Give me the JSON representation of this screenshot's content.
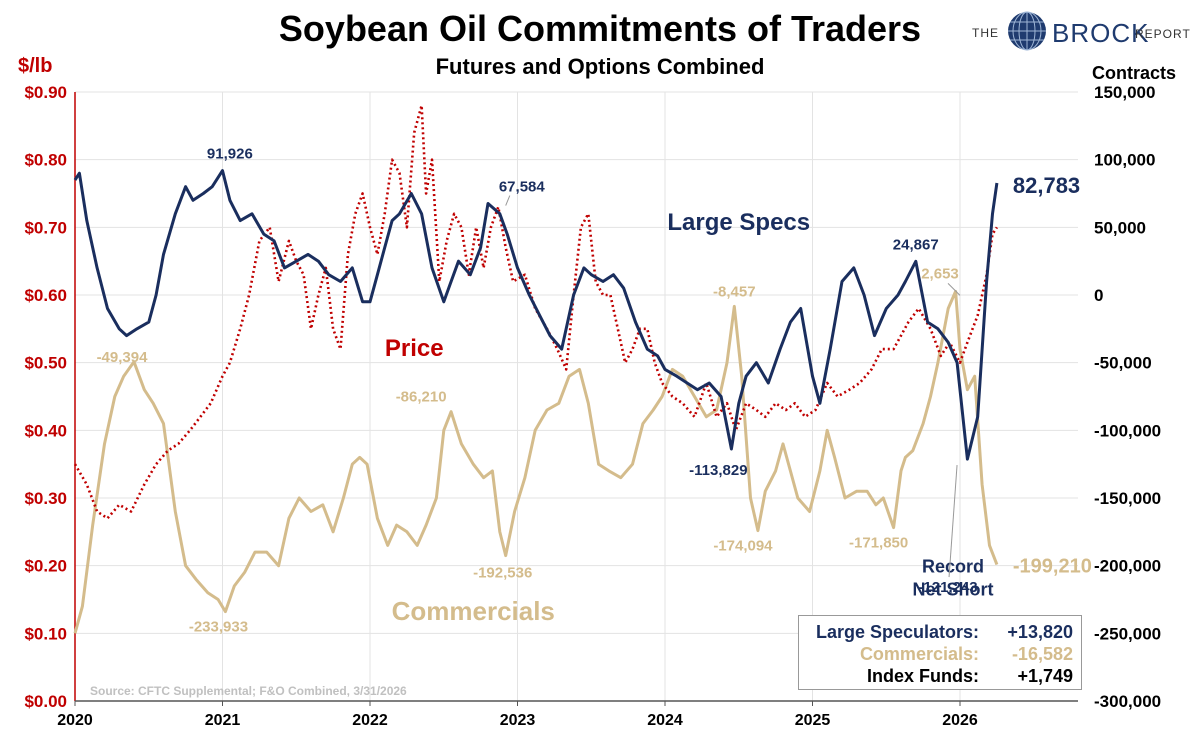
{
  "header": {
    "title": "Soybean Oil Commitments of Traders",
    "subtitle": "Futures and Options Combined"
  },
  "logo": {
    "the": "THE",
    "brock": "BROCK",
    "report": "REPORT"
  },
  "axes": {
    "left_unit": "$/lb",
    "right_unit": "Contracts",
    "left_ticks": [
      "$0.00",
      "$0.10",
      "$0.20",
      "$0.30",
      "$0.40",
      "$0.50",
      "$0.60",
      "$0.70",
      "$0.80",
      "$0.90"
    ],
    "right_ticks": [
      "-300,000",
      "-250,000",
      "-200,000",
      "-150,000",
      "-100,000",
      "-50,000",
      "0",
      "50,000",
      "100,000",
      "150,000"
    ],
    "x_ticks": [
      "2020",
      "2021",
      "2022",
      "2023",
      "2024",
      "2025",
      "2026"
    ]
  },
  "source": "Source: CFTC Supplemental; F&O Combined, 3/31/2026",
  "legend": {
    "rows": [
      {
        "label": "Large Speculators:",
        "value": "+13,820",
        "color": "#1a2e5e"
      },
      {
        "label": "Commercials:",
        "value": "-16,582",
        "color": "#d4bc8c"
      },
      {
        "label": "Index Funds:",
        "value": "+1,749",
        "color": "#000000"
      }
    ]
  },
  "colors": {
    "large_specs": "#1a2e5e",
    "commercials": "#d4bc8c",
    "price": "#c00000",
    "grid": "#e3e3e3"
  },
  "chart_data": {
    "type": "line",
    "x_range": [
      2020.0,
      2026.8
    ],
    "left_ylim": [
      0,
      0.9
    ],
    "right_ylim": [
      -300000,
      150000
    ],
    "grid": true,
    "series": [
      {
        "name": "Large Specs",
        "axis": "right",
        "style": "solid",
        "x": [
          2020.0,
          2020.03,
          2020.08,
          2020.15,
          2020.22,
          2020.3,
          2020.35,
          2020.42,
          2020.5,
          2020.55,
          2020.6,
          2020.68,
          2020.75,
          2020.8,
          2020.87,
          2020.93,
          2021.0,
          2021.05,
          2021.12,
          2021.2,
          2021.28,
          2021.35,
          2021.42,
          2021.5,
          2021.58,
          2021.65,
          2021.72,
          2021.8,
          2021.88,
          2021.95,
          2022.0,
          2022.05,
          2022.1,
          2022.15,
          2022.2,
          2022.28,
          2022.35,
          2022.42,
          2022.5,
          2022.55,
          2022.6,
          2022.68,
          2022.75,
          2022.8,
          2022.88,
          2022.93,
          2023.0,
          2023.08,
          2023.15,
          2023.22,
          2023.3,
          2023.38,
          2023.45,
          2023.5,
          2023.58,
          2023.65,
          2023.72,
          2023.8,
          2023.88,
          2023.95,
          2024.0,
          2024.08,
          2024.15,
          2024.22,
          2024.3,
          2024.38,
          2024.45,
          2024.5,
          2024.55,
          2024.62,
          2024.7,
          2024.78,
          2024.85,
          2024.92,
          2025.0,
          2025.05,
          2025.12,
          2025.2,
          2025.28,
          2025.35,
          2025.42,
          2025.5,
          2025.58,
          2025.63,
          2025.7,
          2025.78,
          2025.85,
          2025.92,
          2025.98,
          2026.05,
          2026.12,
          2026.18,
          2026.22,
          2026.25
        ],
        "values": [
          85000,
          90000,
          55000,
          20000,
          -10000,
          -25000,
          -30000,
          -25000,
          -20000,
          0,
          30000,
          60000,
          80000,
          70000,
          75000,
          80000,
          91926,
          70000,
          55000,
          60000,
          45000,
          40000,
          20000,
          25000,
          30000,
          25000,
          15000,
          10000,
          20000,
          -5000,
          -5000,
          15000,
          35000,
          55000,
          60000,
          75000,
          60000,
          20000,
          -5000,
          10000,
          25000,
          15000,
          35000,
          67584,
          60000,
          45000,
          20000,
          0,
          -15000,
          -30000,
          -40000,
          0,
          20000,
          15000,
          10000,
          15000,
          5000,
          -20000,
          -40000,
          -45000,
          -55000,
          -60000,
          -65000,
          -70000,
          -65000,
          -75000,
          -113829,
          -80000,
          -60000,
          -50000,
          -65000,
          -40000,
          -20000,
          -10000,
          -60000,
          -80000,
          -40000,
          10000,
          20000,
          0,
          -30000,
          -10000,
          0,
          10000,
          24867,
          -20000,
          -25000,
          -35000,
          -50000,
          -121243,
          -90000,
          10000,
          60000,
          82783
        ]
      },
      {
        "name": "Commercials",
        "axis": "right",
        "style": "solid",
        "x": [
          2020.0,
          2020.05,
          2020.12,
          2020.2,
          2020.27,
          2020.33,
          2020.4,
          2020.47,
          2020.53,
          2020.6,
          2020.68,
          2020.75,
          2020.82,
          2020.9,
          2020.97,
          2021.02,
          2021.08,
          2021.15,
          2021.22,
          2021.3,
          2021.38,
          2021.45,
          2021.52,
          2021.6,
          2021.68,
          2021.75,
          2021.82,
          2021.88,
          2021.93,
          2021.98,
          2022.05,
          2022.12,
          2022.18,
          2022.25,
          2022.32,
          2022.38,
          2022.45,
          2022.5,
          2022.55,
          2022.62,
          2022.7,
          2022.77,
          2022.83,
          2022.88,
          2022.92,
          2022.98,
          2023.05,
          2023.12,
          2023.2,
          2023.28,
          2023.35,
          2023.42,
          2023.48,
          2023.55,
          2023.62,
          2023.7,
          2023.78,
          2023.85,
          2023.92,
          2023.98,
          2024.05,
          2024.12,
          2024.2,
          2024.28,
          2024.35,
          2024.42,
          2024.47,
          2024.52,
          2024.58,
          2024.63,
          2024.68,
          2024.75,
          2024.8,
          2024.85,
          2024.9,
          2024.98,
          2025.05,
          2025.1,
          2025.15,
          2025.22,
          2025.3,
          2025.37,
          2025.43,
          2025.48,
          2025.55,
          2025.6,
          2025.63,
          2025.68,
          2025.75,
          2025.8,
          2025.85,
          2025.92,
          2025.97,
          2026.0,
          2026.05,
          2026.1,
          2026.15,
          2026.2,
          2026.25
        ],
        "values": [
          -250000,
          -230000,
          -170000,
          -110000,
          -75000,
          -60000,
          -49394,
          -70000,
          -80000,
          -95000,
          -160000,
          -200000,
          -210000,
          -220000,
          -225000,
          -233933,
          -215000,
          -205000,
          -190000,
          -190000,
          -200000,
          -165000,
          -150000,
          -160000,
          -155000,
          -175000,
          -150000,
          -125000,
          -120000,
          -125000,
          -165000,
          -185000,
          -170000,
          -175000,
          -185000,
          -170000,
          -150000,
          -100000,
          -86210,
          -110000,
          -125000,
          -135000,
          -130000,
          -175000,
          -192536,
          -160000,
          -135000,
          -100000,
          -85000,
          -80000,
          -60000,
          -55000,
          -80000,
          -125000,
          -130000,
          -135000,
          -125000,
          -95000,
          -85000,
          -75000,
          -55000,
          -60000,
          -75000,
          -90000,
          -85000,
          -50000,
          -8457,
          -60000,
          -150000,
          -174094,
          -145000,
          -130000,
          -110000,
          -130000,
          -150000,
          -160000,
          -130000,
          -100000,
          -120000,
          -150000,
          -145000,
          -145000,
          -155000,
          -150000,
          -171850,
          -130000,
          -120000,
          -115000,
          -95000,
          -75000,
          -50000,
          -10000,
          2653,
          -40000,
          -70000,
          -60000,
          -140000,
          -185000,
          -199210
        ]
      },
      {
        "name": "Price",
        "axis": "left",
        "style": "dotted",
        "x": [
          2020.0,
          2020.08,
          2020.15,
          2020.22,
          2020.3,
          2020.38,
          2020.47,
          2020.55,
          2020.63,
          2020.7,
          2020.78,
          2020.85,
          2020.92,
          2021.0,
          2021.05,
          2021.12,
          2021.18,
          2021.25,
          2021.32,
          2021.38,
          2021.45,
          2021.5,
          2021.55,
          2021.6,
          2021.65,
          2021.7,
          2021.75,
          2021.8,
          2021.85,
          2021.9,
          2021.95,
          2022.0,
          2022.05,
          2022.1,
          2022.15,
          2022.2,
          2022.25,
          2022.3,
          2022.35,
          2022.38,
          2022.42,
          2022.47,
          2022.52,
          2022.57,
          2022.62,
          2022.67,
          2022.72,
          2022.77,
          2022.82,
          2022.87,
          2022.92,
          2022.97,
          2023.05,
          2023.12,
          2023.2,
          2023.27,
          2023.33,
          2023.38,
          2023.43,
          2023.48,
          2023.53,
          2023.58,
          2023.63,
          2023.68,
          2023.73,
          2023.78,
          2023.83,
          2023.88,
          2023.93,
          2023.98,
          2024.05,
          2024.12,
          2024.2,
          2024.28,
          2024.35,
          2024.42,
          2024.48,
          2024.55,
          2024.62,
          2024.68,
          2024.75,
          2024.82,
          2024.88,
          2024.95,
          2025.02,
          2025.1,
          2025.17,
          2025.25,
          2025.32,
          2025.4,
          2025.47,
          2025.55,
          2025.6,
          2025.65,
          2025.72,
          2025.8,
          2025.87,
          2025.93,
          2026.0,
          2026.05,
          2026.12,
          2026.18,
          2026.22,
          2026.25
        ],
        "values": [
          0.35,
          0.32,
          0.28,
          0.27,
          0.29,
          0.28,
          0.32,
          0.35,
          0.37,
          0.38,
          0.4,
          0.42,
          0.44,
          0.48,
          0.5,
          0.55,
          0.6,
          0.68,
          0.7,
          0.62,
          0.68,
          0.65,
          0.63,
          0.55,
          0.6,
          0.64,
          0.55,
          0.52,
          0.66,
          0.72,
          0.75,
          0.7,
          0.66,
          0.72,
          0.8,
          0.78,
          0.7,
          0.84,
          0.88,
          0.75,
          0.8,
          0.62,
          0.68,
          0.72,
          0.7,
          0.63,
          0.7,
          0.64,
          0.7,
          0.73,
          0.67,
          0.62,
          0.63,
          0.58,
          0.55,
          0.52,
          0.49,
          0.6,
          0.7,
          0.72,
          0.62,
          0.6,
          0.6,
          0.55,
          0.5,
          0.52,
          0.55,
          0.55,
          0.5,
          0.47,
          0.45,
          0.44,
          0.42,
          0.47,
          0.42,
          0.44,
          0.4,
          0.44,
          0.43,
          0.42,
          0.44,
          0.43,
          0.44,
          0.42,
          0.43,
          0.47,
          0.45,
          0.46,
          0.47,
          0.49,
          0.52,
          0.52,
          0.54,
          0.56,
          0.58,
          0.55,
          0.51,
          0.53,
          0.5,
          0.53,
          0.57,
          0.63,
          0.69,
          0.7
        ]
      }
    ],
    "annotations": [
      {
        "text": "91,926",
        "series": "Large Specs",
        "x": 2021.05,
        "y": 91926
      },
      {
        "text": "67,584",
        "series": "Large Specs",
        "x": 2022.88,
        "y": 67584
      },
      {
        "text": "24,867",
        "series": "Large Specs",
        "x": 2025.7,
        "y": 24867
      },
      {
        "text": "-113,829",
        "series": "Large Specs",
        "x": 2024.45,
        "y": -113829
      },
      {
        "text": "-121,243",
        "series": "Large Specs",
        "x": 2025.98,
        "y": -121243
      },
      {
        "text": "82,783",
        "series": "Large Specs",
        "x": 2026.25,
        "y": 82783
      },
      {
        "text": "-49,394",
        "series": "Commercials",
        "x": 2020.4,
        "y": -49394
      },
      {
        "text": "-233,933",
        "series": "Commercials",
        "x": 2021.02,
        "y": -233933
      },
      {
        "text": "-86,210",
        "series": "Commercials",
        "x": 2022.55,
        "y": -86210
      },
      {
        "text": "-192,536",
        "series": "Commercials",
        "x": 2022.92,
        "y": -192536
      },
      {
        "text": "-8,457",
        "series": "Commercials",
        "x": 2024.47,
        "y": -8457
      },
      {
        "text": "-174,094",
        "series": "Commercials",
        "x": 2024.63,
        "y": -174094
      },
      {
        "text": "-171,850",
        "series": "Commercials",
        "x": 2025.55,
        "y": -171850
      },
      {
        "text": "2,653",
        "series": "Commercials",
        "x": 2026.0,
        "y": 2653
      },
      {
        "text": "-199,210",
        "series": "Commercials",
        "x": 2026.25,
        "y": -199210
      },
      {
        "text": "Large Specs",
        "series": "Large Specs",
        "x": 2024.5,
        "y": 48000
      },
      {
        "text": "Price",
        "series": "Price",
        "x": 2022.3,
        "y": 0.51
      },
      {
        "text": "Commercials",
        "series": "Commercials",
        "x": 2022.7,
        "y": -240000
      },
      {
        "text": "Record",
        "series": "Large Specs",
        "x": 2026.0,
        "y": -205000
      },
      {
        "text": "Net Short",
        "series": "Large Specs",
        "x": 2026.0,
        "y": -222000
      }
    ]
  }
}
